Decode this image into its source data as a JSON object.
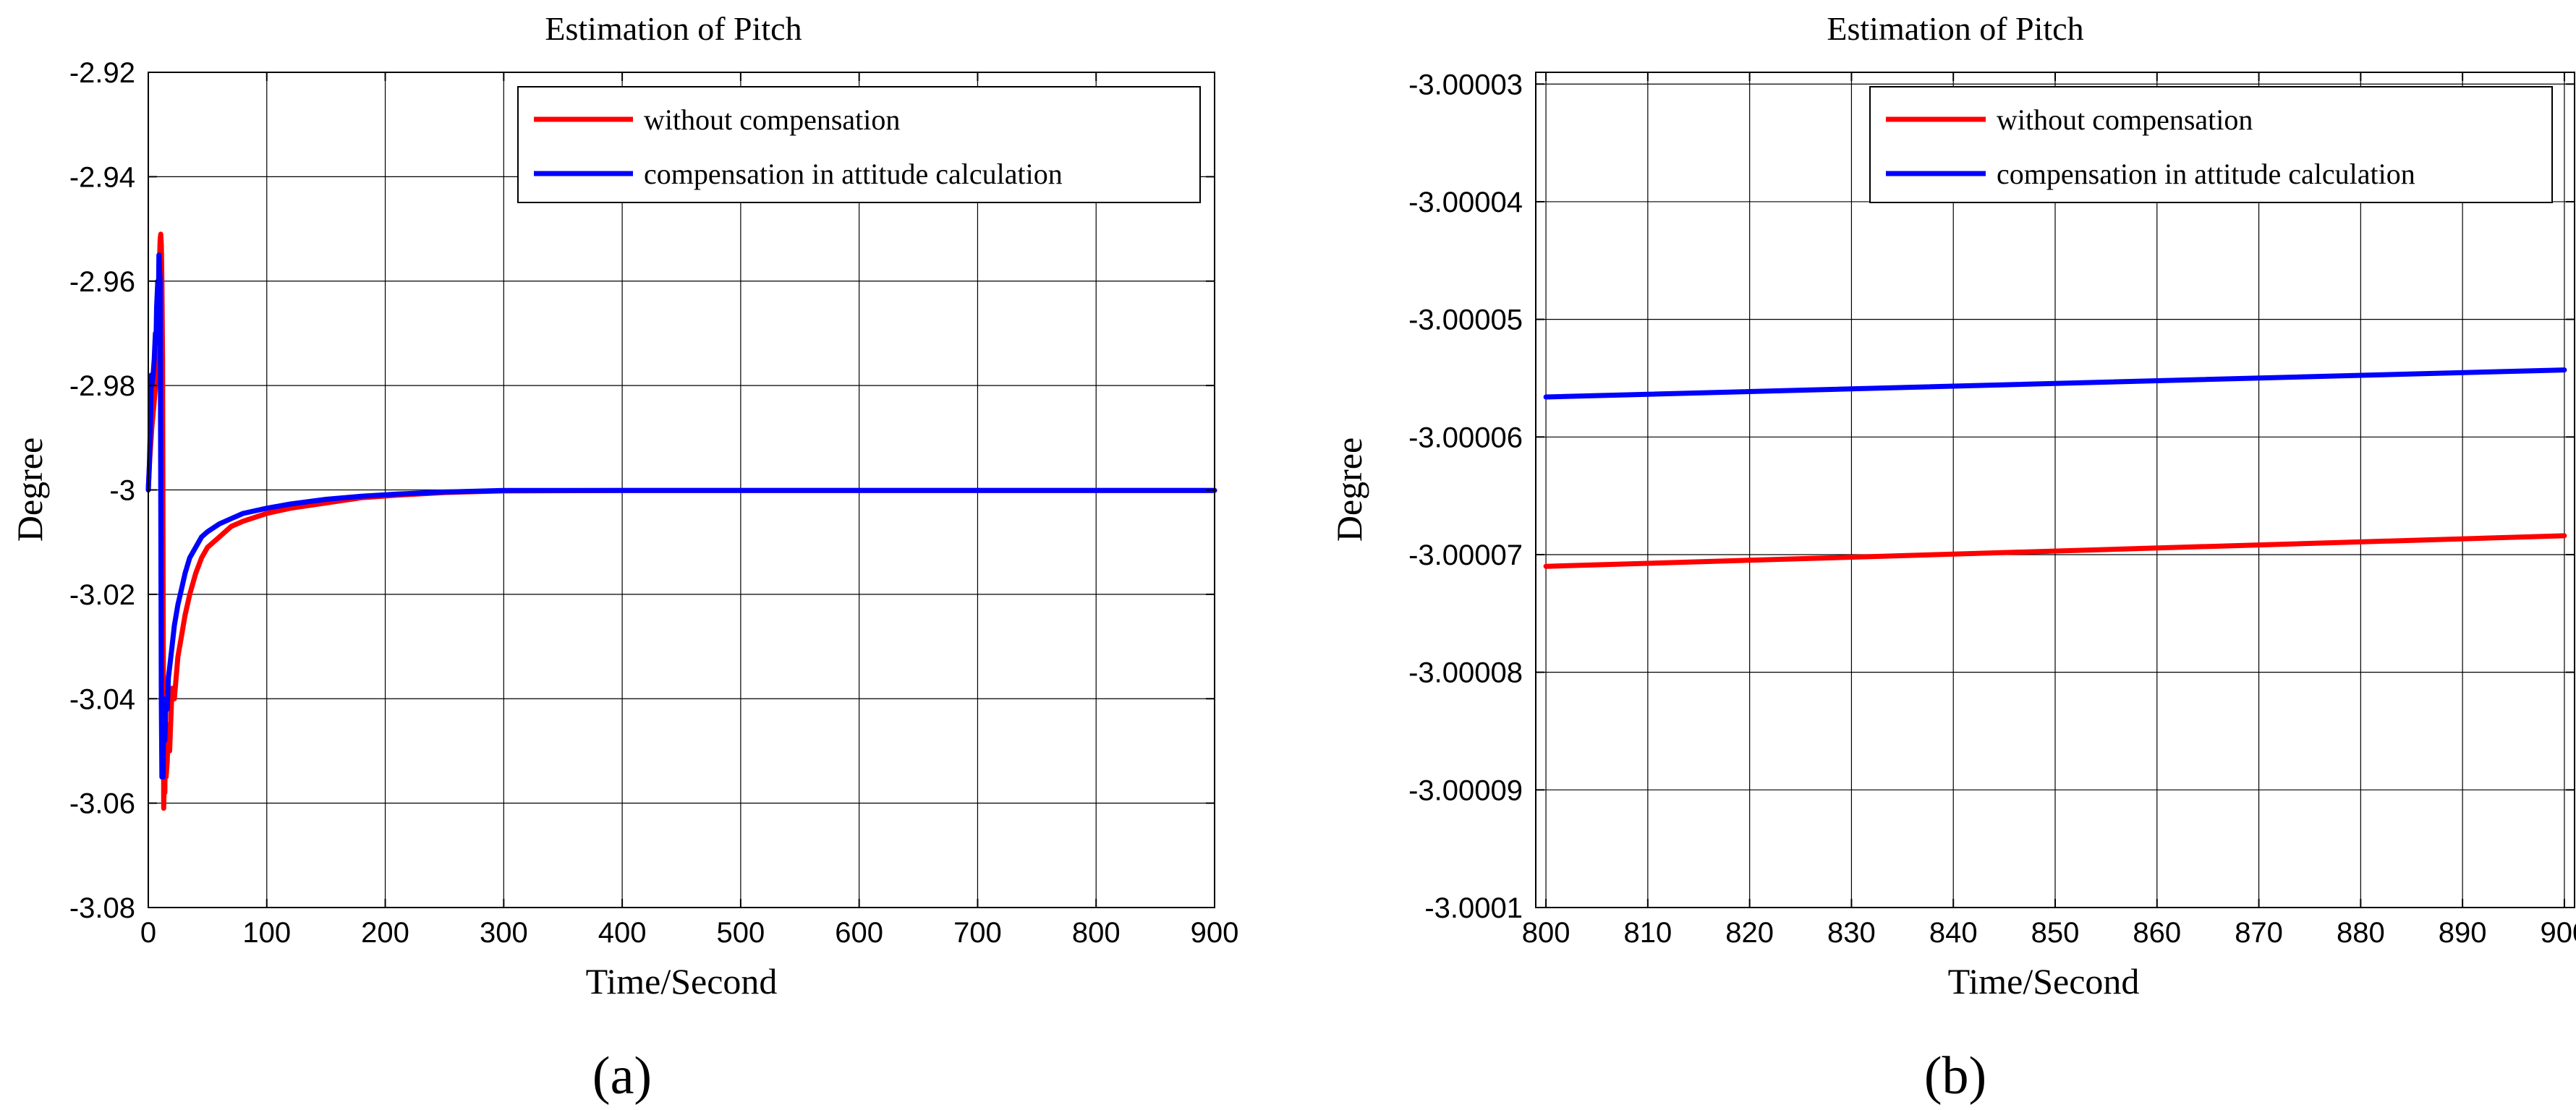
{
  "chart_data": [
    {
      "type": "line",
      "panel_label": "(a)",
      "title": "Estimation of Pitch",
      "xlabel": "Time/Second",
      "ylabel": "Degree",
      "xlim": [
        0,
        900
      ],
      "ylim": [
        -3.08,
        -2.92
      ],
      "xticks": [
        0,
        100,
        200,
        300,
        400,
        500,
        600,
        700,
        800,
        900
      ],
      "xtick_labels": [
        "0",
        "100",
        "200",
        "300",
        "400",
        "500",
        "600",
        "700",
        "800",
        "900"
      ],
      "yticks": [
        -3.08,
        -3.06,
        -3.04,
        -3.02,
        -3.0,
        -2.98,
        -2.96,
        -2.94,
        -2.92
      ],
      "ytick_labels": [
        "-3.08",
        "-3.06",
        "-3.04",
        "-3.02",
        "-3",
        "-2.98",
        "-2.96",
        "-2.94",
        "-2.92"
      ],
      "grid": true,
      "legend_position": "top-right",
      "series": [
        {
          "name": "without compensation",
          "color": "#ff0000",
          "x": [
            0,
            1,
            3,
            5,
            7,
            8,
            9,
            10,
            10.5,
            11,
            11.5,
            12,
            12.5,
            13,
            13.5,
            14,
            14.5,
            15,
            16,
            17,
            18,
            20,
            22,
            25,
            28,
            31,
            35,
            40,
            45,
            50,
            60,
            70,
            80,
            100,
            120,
            150,
            180,
            210,
            250,
            300,
            400,
            500,
            600,
            700,
            800,
            900
          ],
          "y": [
            -3.0,
            -2.995,
            -2.988,
            -2.983,
            -2.978,
            -2.975,
            -2.96,
            -2.952,
            -2.951,
            -2.953,
            -2.96,
            -2.975,
            -3.02,
            -3.061,
            -3.055,
            -3.058,
            -3.045,
            -3.055,
            -3.052,
            -3.045,
            -3.05,
            -3.038,
            -3.04,
            -3.032,
            -3.028,
            -3.024,
            -3.02,
            -3.016,
            -3.013,
            -3.011,
            -3.009,
            -3.007,
            -3.006,
            -3.0045,
            -3.0035,
            -3.0025,
            -3.0015,
            -3.001,
            -3.0005,
            -3.0002,
            -3.0001,
            -3.0001,
            -3.0001,
            -3.0001,
            -3.0001,
            -3.0001
          ]
        },
        {
          "name": "compensation in attitude calculation",
          "color": "#0000ff",
          "x": [
            0,
            1,
            2,
            2.5,
            3,
            4,
            5,
            6,
            6.5,
            7,
            8,
            8.5,
            9,
            9.5,
            10,
            10.5,
            11,
            11.5,
            12,
            12.5,
            13,
            14,
            15,
            16,
            17,
            18,
            20,
            22,
            25,
            28,
            31,
            35,
            40,
            45,
            50,
            60,
            70,
            80,
            100,
            120,
            150,
            180,
            210,
            250,
            300,
            400,
            500,
            600,
            700,
            800,
            900
          ],
          "y": [
            -3.0,
            -2.995,
            -2.985,
            -2.978,
            -2.98,
            -2.978,
            -2.975,
            -2.97,
            -2.972,
            -2.965,
            -2.96,
            -2.965,
            -2.955,
            -2.958,
            -2.96,
            -3.0,
            -3.04,
            -3.055,
            -3.05,
            -3.055,
            -3.04,
            -3.048,
            -3.04,
            -3.042,
            -3.036,
            -3.034,
            -3.03,
            -3.026,
            -3.022,
            -3.019,
            -3.016,
            -3.013,
            -3.011,
            -3.009,
            -3.008,
            -3.0065,
            -3.0055,
            -3.0045,
            -3.0035,
            -3.0027,
            -3.0018,
            -3.0012,
            -3.0008,
            -3.0004,
            -3.0001,
            -3.0001,
            -3.0001,
            -3.0001,
            -3.0001,
            -3.0001,
            -3.0001
          ]
        }
      ]
    },
    {
      "type": "line",
      "panel_label": "(b)",
      "title": "Estimation of Pitch",
      "xlabel": "Time/Second",
      "ylabel": "Degree",
      "xlim": [
        799,
        901
      ],
      "ylim": [
        -3.0001,
        -3.000029
      ],
      "xticks": [
        800,
        810,
        820,
        830,
        840,
        850,
        860,
        870,
        880,
        890,
        900
      ],
      "xtick_labels": [
        "800",
        "810",
        "820",
        "830",
        "840",
        "850",
        "860",
        "870",
        "880",
        "890",
        "900"
      ],
      "yticks": [
        -3.0001,
        -3.00009,
        -3.00008,
        -3.00007,
        -3.00006,
        -3.00005,
        -3.00004,
        -3.00003
      ],
      "ytick_labels": [
        "-3.0001",
        "-3.00009",
        "-3.00008",
        "-3.00007",
        "-3.00006",
        "-3.00005",
        "-3.00004",
        "-3.00003"
      ],
      "grid": true,
      "legend_position": "top-right",
      "series": [
        {
          "name": "without compensation",
          "color": "#ff0000",
          "x": [
            800,
            900
          ],
          "y": [
            -3.000071,
            -3.0000684
          ]
        },
        {
          "name": "compensation in attitude calculation",
          "color": "#0000ff",
          "x": [
            800,
            900
          ],
          "y": [
            -3.0000566,
            -3.0000543
          ]
        }
      ]
    }
  ]
}
